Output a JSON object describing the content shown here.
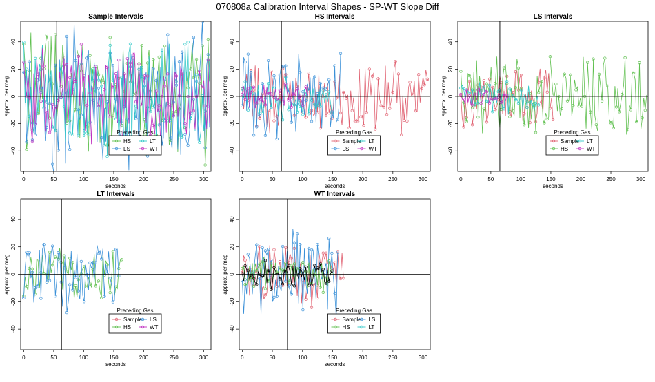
{
  "figure_title": "070808a   Calibration Interval Shapes - SP-WT Slope Diff",
  "colors": {
    "Sample": "#e06070",
    "HS": "#60c050",
    "LS": "#3a90d8",
    "LT": "#30c8c8",
    "WT": "#c030c0",
    "self": "#000000"
  },
  "chart_data": [
    {
      "id": "sample",
      "type": "line",
      "title": "Sample Intervals",
      "xlabel": "seconds",
      "ylabel": "approx. per meg",
      "xlim": [
        -5,
        312
      ],
      "ylim": [
        -55,
        55
      ],
      "xticks": [
        0,
        50,
        100,
        150,
        200,
        250,
        300
      ],
      "yticks": [
        -40,
        -20,
        0,
        20,
        40
      ],
      "vline": 55,
      "legend": {
        "title": "Preceding Gas",
        "entries": [
          "HS",
          "LT",
          "LS",
          "WT"
        ],
        "placement": "bottom-center"
      },
      "series": [
        {
          "name": "HS",
          "x_end": 310,
          "amp": 55,
          "seed": 11
        },
        {
          "name": "LS",
          "x_end": 310,
          "amp": 60,
          "seed": 23
        },
        {
          "name": "LT",
          "x_end": 310,
          "amp": 45,
          "seed": 37
        },
        {
          "name": "WT",
          "x_end": 310,
          "amp": 40,
          "seed": 41
        }
      ]
    },
    {
      "id": "hs",
      "type": "line",
      "title": "HS Intervals",
      "xlabel": "seconds",
      "ylabel": "approx. per meg",
      "xlim": [
        -5,
        312
      ],
      "ylim": [
        -55,
        55
      ],
      "xticks": [
        0,
        50,
        100,
        150,
        200,
        250,
        300
      ],
      "yticks": [
        -40,
        -20,
        0,
        20,
        40
      ],
      "vline": 65,
      "legend": {
        "title": "Preceding Gas",
        "entries": [
          "Sample",
          "LT",
          "LS",
          "WT"
        ],
        "placement": "bottom-center"
      },
      "series": [
        {
          "name": "Sample",
          "x_end": 310,
          "amp": 30,
          "seed": 53
        },
        {
          "name": "LS",
          "x_end": 165,
          "amp": 35,
          "seed": 61
        },
        {
          "name": "LT",
          "x_end": 150,
          "amp": 18,
          "seed": 71
        },
        {
          "name": "WT",
          "x_end": 110,
          "amp": 10,
          "seed": 79
        }
      ]
    },
    {
      "id": "ls",
      "type": "line",
      "title": "LS Intervals",
      "xlabel": "seconds",
      "ylabel": "approx. per meg",
      "xlim": [
        -5,
        312
      ],
      "ylim": [
        -55,
        55
      ],
      "xticks": [
        0,
        50,
        100,
        150,
        200,
        250,
        300
      ],
      "yticks": [
        -40,
        -20,
        0,
        20,
        40
      ],
      "vline": 65,
      "legend": {
        "title": "Preceding Gas",
        "entries": [
          "Sample",
          "LT",
          "HS",
          "WT"
        ],
        "placement": "bottom-center"
      },
      "series": [
        {
          "name": "Sample",
          "x_end": 155,
          "amp": 28,
          "seed": 83
        },
        {
          "name": "HS",
          "x_end": 310,
          "amp": 32,
          "seed": 89
        },
        {
          "name": "LT",
          "x_end": 130,
          "amp": 15,
          "seed": 97
        },
        {
          "name": "WT",
          "x_end": 80,
          "amp": 8,
          "seed": 101
        }
      ]
    },
    {
      "id": "lt",
      "type": "line",
      "title": "LT Intervals",
      "xlabel": "seconds",
      "ylabel": "approx. per meg",
      "xlim": [
        -5,
        312
      ],
      "ylim": [
        -55,
        55
      ],
      "xticks": [
        0,
        50,
        100,
        150,
        200,
        250,
        300
      ],
      "yticks": [
        -40,
        -20,
        0,
        20,
        40
      ],
      "vline": 63,
      "legend": {
        "title": "Preceding Gas",
        "entries": [
          "Sample",
          "LS",
          "HS",
          "WT"
        ],
        "placement": "bottom-center"
      },
      "series": [
        {
          "name": "HS",
          "x_end": 165,
          "amp": 22,
          "seed": 103
        },
        {
          "name": "LS",
          "x_end": 160,
          "amp": 30,
          "seed": 107
        }
      ]
    },
    {
      "id": "wt",
      "type": "line",
      "title": "WT Intervals",
      "xlabel": "seconds",
      "ylabel": "approx. per meg",
      "xlim": [
        -5,
        312
      ],
      "ylim": [
        -55,
        55
      ],
      "xticks": [
        0,
        50,
        100,
        150,
        200,
        250,
        300
      ],
      "yticks": [
        -40,
        -20,
        0,
        20,
        40
      ],
      "vline": 75,
      "legend": {
        "title": "Preceding Gas",
        "entries": [
          "Sample",
          "LS",
          "HS",
          "LT"
        ],
        "placement": "bottom-center"
      },
      "series": [
        {
          "name": "Sample",
          "x_end": 170,
          "amp": 28,
          "seed": 109
        },
        {
          "name": "LS",
          "x_end": 160,
          "amp": 35,
          "seed": 113
        },
        {
          "name": "HS",
          "x_end": 150,
          "amp": 15,
          "seed": 127
        },
        {
          "name": "self",
          "x_end": 150,
          "amp": 12,
          "seed": 131
        }
      ]
    }
  ]
}
